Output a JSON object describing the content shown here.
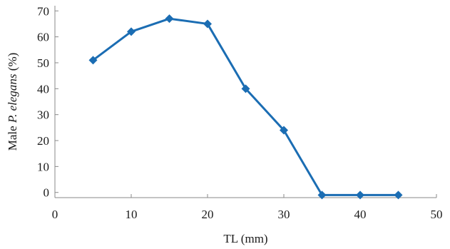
{
  "chart_data": {
    "type": "line",
    "title": "",
    "xlabel": "TL (mm)",
    "ylabel_parts": [
      {
        "text": "Male ",
        "italic": false
      },
      {
        "text": "P. elegans",
        "italic": true
      },
      {
        "text": "  (%)",
        "italic": false
      }
    ],
    "xlim": [
      0,
      50
    ],
    "ylim": [
      -2,
      72
    ],
    "xticks": [
      0,
      10,
      20,
      30,
      40,
      50
    ],
    "yticks": [
      0,
      10,
      20,
      30,
      40,
      50,
      60,
      70
    ],
    "grid": false,
    "series": [
      {
        "x": [
          5,
          10,
          15,
          20,
          25,
          30,
          35,
          40,
          45
        ],
        "values": [
          51,
          62,
          67,
          65,
          40,
          24,
          -1,
          -1,
          -1
        ]
      }
    ],
    "colors": {
      "line": "#1b6db3",
      "marker": "#1b6db3",
      "axis": "#8a8a8a"
    }
  }
}
